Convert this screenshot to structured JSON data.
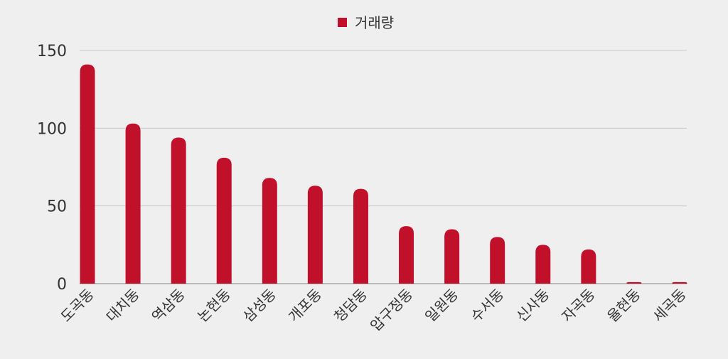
{
  "chart_data": {
    "type": "bar",
    "title": "",
    "xlabel": "",
    "ylabel": "",
    "categories": [
      "도곡동",
      "대치동",
      "역삼동",
      "논현동",
      "삼성동",
      "개포동",
      "청담동",
      "압구정동",
      "일원동",
      "수서동",
      "신사동",
      "자곡동",
      "율현동",
      "세곡동"
    ],
    "series": [
      {
        "name": "거래량",
        "color": "#c0102a",
        "values": [
          141,
          103,
          94,
          81,
          68,
          63,
          61,
          37,
          35,
          30,
          25,
          22,
          1,
          1
        ]
      }
    ],
    "ylim": [
      0,
      150
    ],
    "yticks": [
      0,
      50,
      100,
      150
    ],
    "grid": true,
    "legend_position": "top-center"
  }
}
